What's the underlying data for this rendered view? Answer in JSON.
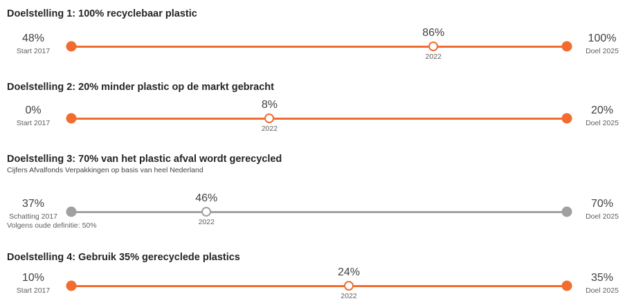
{
  "colors": {
    "active": "#f26c2f",
    "estimate": "#a0a0a0"
  },
  "chart_data": [
    {
      "type": "progress-range",
      "title": "Doelstelling 1: 100% recyclebaar plastic",
      "subtitle": "",
      "start": {
        "value": 48,
        "display": "48%",
        "label": "Start 2017"
      },
      "current": {
        "value": 86,
        "display": "86%",
        "label": "2022"
      },
      "target": {
        "value": 100,
        "display": "100%",
        "label": "Doel 2025"
      },
      "color": "#f26c2f"
    },
    {
      "type": "progress-range",
      "title": "Doelstelling 2: 20% minder plastic op de markt gebracht",
      "subtitle": "",
      "start": {
        "value": 0,
        "display": "0%",
        "label": "Start 2017"
      },
      "current": {
        "value": 8,
        "display": "8%",
        "label": "2022"
      },
      "target": {
        "value": 20,
        "display": "20%",
        "label": "Doel 2025"
      },
      "color": "#f26c2f"
    },
    {
      "type": "progress-range",
      "title": "Doelstelling 3: 70% van het plastic afval wordt gerecycled",
      "subtitle": "Cijfers Afvalfonds Verpakkingen op basis van heel Nederland",
      "start": {
        "value": 37,
        "display": "37%",
        "label": "Schatting 2017",
        "note": "Volgens oude definitie: 50%"
      },
      "current": {
        "value": 46,
        "display": "46%",
        "label": "2022"
      },
      "target": {
        "value": 70,
        "display": "70%",
        "label": "Doel 2025"
      },
      "color": "#a0a0a0"
    },
    {
      "type": "progress-range",
      "title": "Doelstelling 4: Gebruik 35% gerecyclede plastics",
      "subtitle": "",
      "start": {
        "value": 10,
        "display": "10%",
        "label": "Start 2017"
      },
      "current": {
        "value": 24,
        "display": "24%",
        "label": "2022"
      },
      "target": {
        "value": 35,
        "display": "35%",
        "label": "Doel 2025"
      },
      "color": "#f26c2f"
    }
  ]
}
